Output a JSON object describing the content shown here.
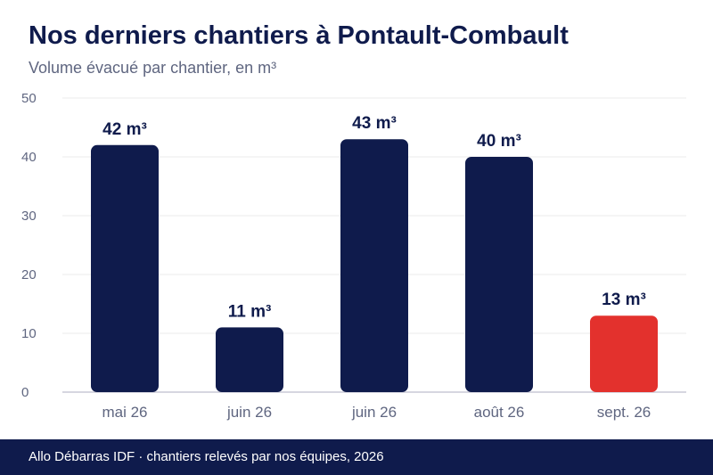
{
  "header": {
    "title": "Nos derniers chantiers à Pontault-Combault",
    "subtitle": "Volume évacué par chantier, en m³"
  },
  "footer": {
    "text": "Allo Débarras IDF · chantiers relevés par nos équipes, 2026"
  },
  "colors": {
    "bar": "#0f1b4c",
    "highlight": "#e3312d",
    "grid": "#ebebeb",
    "axis": "#c9c9d6",
    "tick_text": "#5f6680",
    "label_text": "#0f1b4c"
  },
  "chart_data": {
    "type": "bar",
    "categories": [
      "mai 26",
      "juin 26",
      "juin 26",
      "août 26",
      "sept. 26"
    ],
    "values": [
      42,
      11,
      43,
      40,
      13
    ],
    "value_labels": [
      "42 m³",
      "11 m³",
      "43 m³",
      "40 m³",
      "13 m³"
    ],
    "highlight_index": 4,
    "ylim": [
      0,
      50
    ],
    "yticks": [
      0,
      10,
      20,
      30,
      40,
      50
    ],
    "xlabel": "",
    "ylabel": "",
    "grid": true,
    "legend": "none"
  }
}
